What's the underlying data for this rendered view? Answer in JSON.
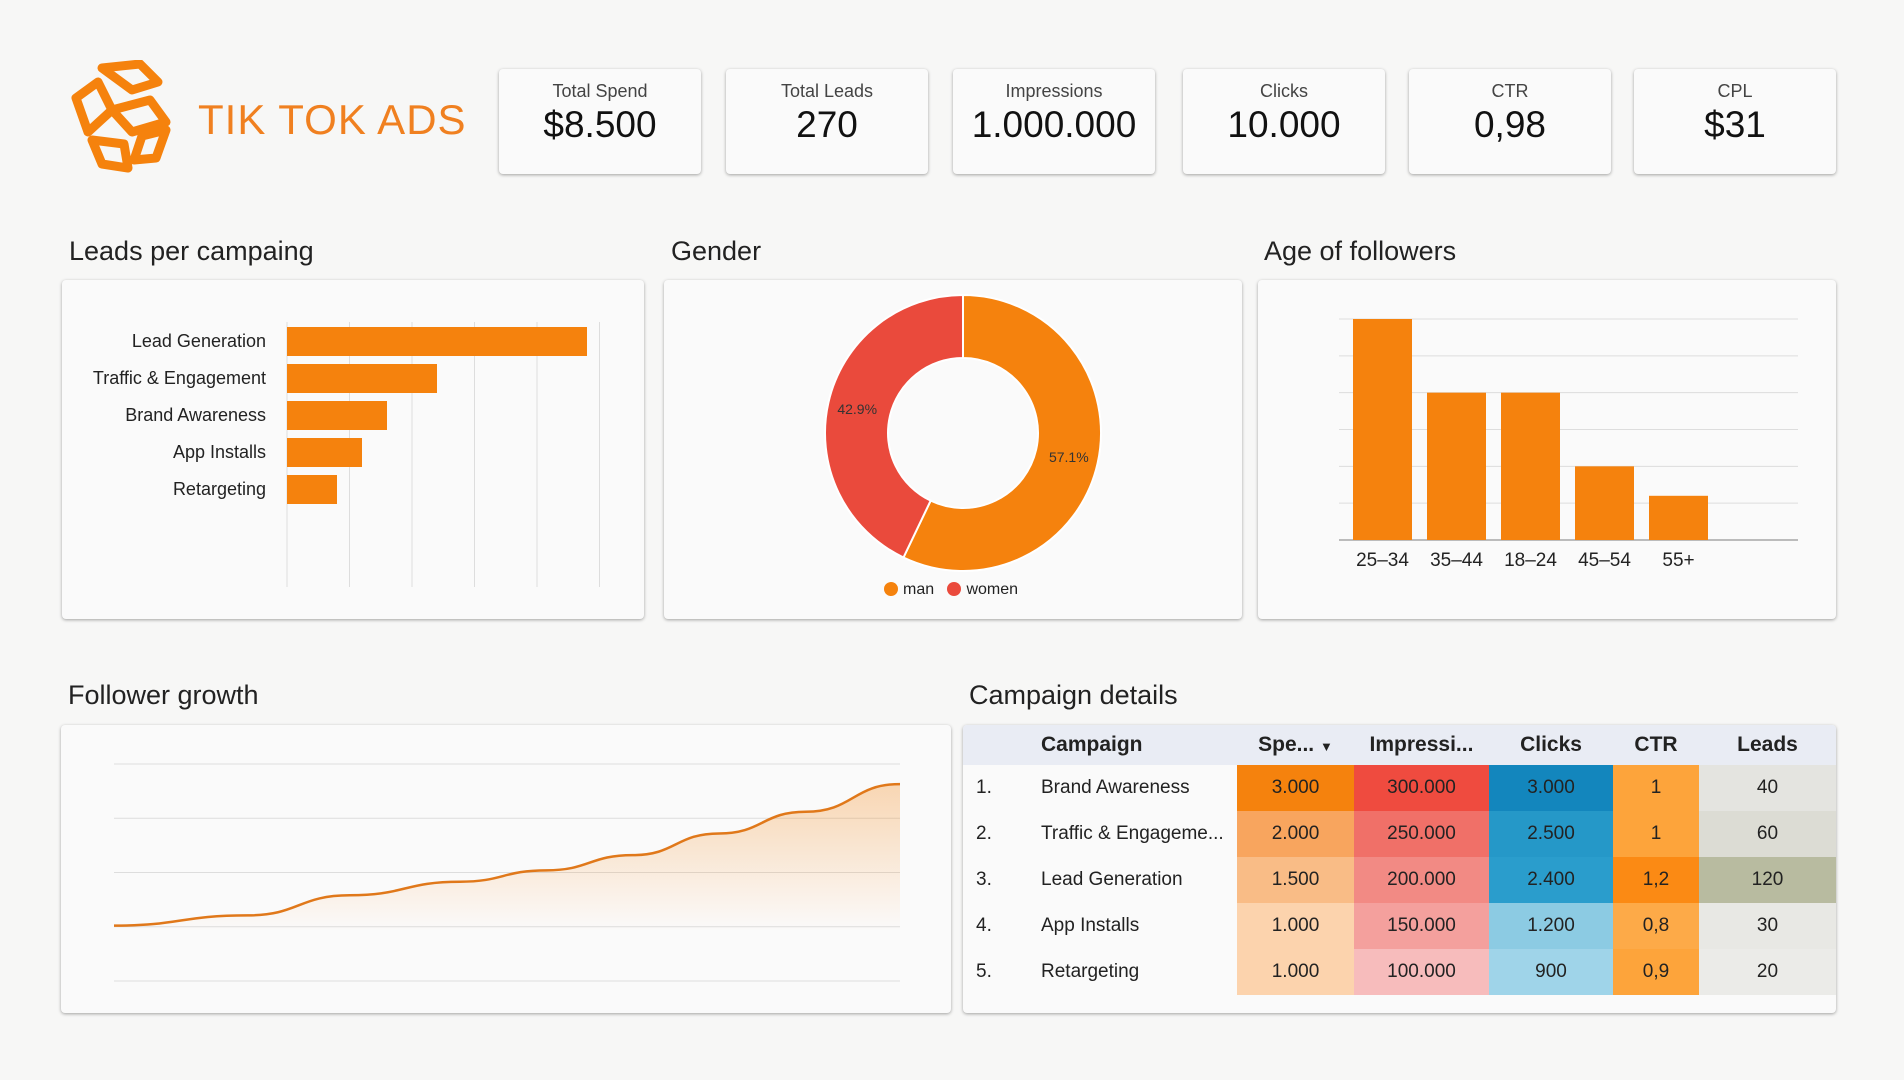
{
  "header": {
    "title": "TIK TOK ADS"
  },
  "kpis": [
    {
      "label": "Total Spend",
      "value": "$8.500"
    },
    {
      "label": "Total Leads",
      "value": "270"
    },
    {
      "label": "Impressions",
      "value": "1.000.000"
    },
    {
      "label": "Clicks",
      "value": "10.000"
    },
    {
      "label": "CTR",
      "value": "0,98"
    },
    {
      "label": "CPL",
      "value": "$31"
    }
  ],
  "sections": {
    "leads": "Leads per campaing",
    "gender": "Gender",
    "age": "Age of followers",
    "growth": "Follower growth",
    "details": "Campaign details"
  },
  "colors": {
    "accent": "#f5820d",
    "women": "#ea4a3c"
  },
  "chart_data": [
    {
      "type": "bar",
      "orientation": "horizontal",
      "title": "Leads per campaing",
      "categories": [
        "Lead Generation",
        "Traffic & Engagement",
        "Brand Awareness",
        "App Installs",
        "Retargeting"
      ],
      "values": [
        120,
        60,
        40,
        30,
        20
      ],
      "xlim": [
        0,
        125
      ],
      "grid": true
    },
    {
      "type": "pie",
      "donut": true,
      "title": "Gender",
      "categories": [
        "man",
        "women"
      ],
      "values": [
        57.1,
        42.9
      ],
      "labels": [
        "57.1%",
        "42.9%"
      ],
      "colors": [
        "#f5820d",
        "#ea4a3c"
      ],
      "legend": "bottom"
    },
    {
      "type": "bar",
      "title": "Age of followers",
      "categories": [
        "25–34",
        "35–44",
        "18–24",
        "45–54",
        "55+"
      ],
      "values": [
        6,
        4,
        4,
        2,
        1.2
      ],
      "ylim": [
        0,
        6
      ],
      "grid": true
    },
    {
      "type": "area",
      "title": "Follower growth",
      "x": [
        0,
        17,
        30,
        44,
        55,
        66,
        77,
        88,
        100
      ],
      "values": [
        1.02,
        1.21,
        1.58,
        1.83,
        2.04,
        2.32,
        2.72,
        3.12,
        3.63
      ],
      "ylim": [
        0,
        4
      ],
      "grid": true
    }
  ],
  "table": {
    "headers": [
      "Campaign",
      "Spe...",
      "Impressi...",
      "Clicks",
      "CTR",
      "Leads"
    ],
    "sort_icon": "caret-down-icon",
    "rows": [
      {
        "n": "1.",
        "campaign": "Brand Awareness",
        "spend": "3.000",
        "impressions": "300.000",
        "clicks": "3.000",
        "ctr": "1",
        "leads": "40"
      },
      {
        "n": "2.",
        "campaign": "Traffic & Engageme...",
        "spend": "2.000",
        "impressions": "250.000",
        "clicks": "2.500",
        "ctr": "1",
        "leads": "60"
      },
      {
        "n": "3.",
        "campaign": "Lead Generation",
        "spend": "1.500",
        "impressions": "200.000",
        "clicks": "2.400",
        "ctr": "1,2",
        "leads": "120"
      },
      {
        "n": "4.",
        "campaign": "App Installs",
        "spend": "1.000",
        "impressions": "150.000",
        "clicks": "1.200",
        "ctr": "0,8",
        "leads": "30"
      },
      {
        "n": "5.",
        "campaign": "Retargeting",
        "spend": "1.000",
        "impressions": "100.000",
        "clicks": "900",
        "ctr": "0,9",
        "leads": "20"
      }
    ],
    "heat": {
      "spend": [
        "#f5820d",
        "#f8a55e",
        "#f9bc86",
        "#fcd3ad",
        "#fcd3ad"
      ],
      "impressions": [
        "#ef4b3f",
        "#f07068",
        "#f28a84",
        "#f4a09d",
        "#f7bcbc"
      ],
      "clicks": [
        "#1386bd",
        "#2598c8",
        "#2a9dcc",
        "#8ccbe3",
        "#9fd4e9"
      ],
      "ctr": [
        "#fda43b",
        "#fda43b",
        "#fb8a14",
        "#fdaa48",
        "#fda43b"
      ],
      "leads": [
        "#e4e4e0",
        "#dcdcd4",
        "#b8bba0",
        "#e8e8e4",
        "#ebebe8"
      ]
    }
  }
}
